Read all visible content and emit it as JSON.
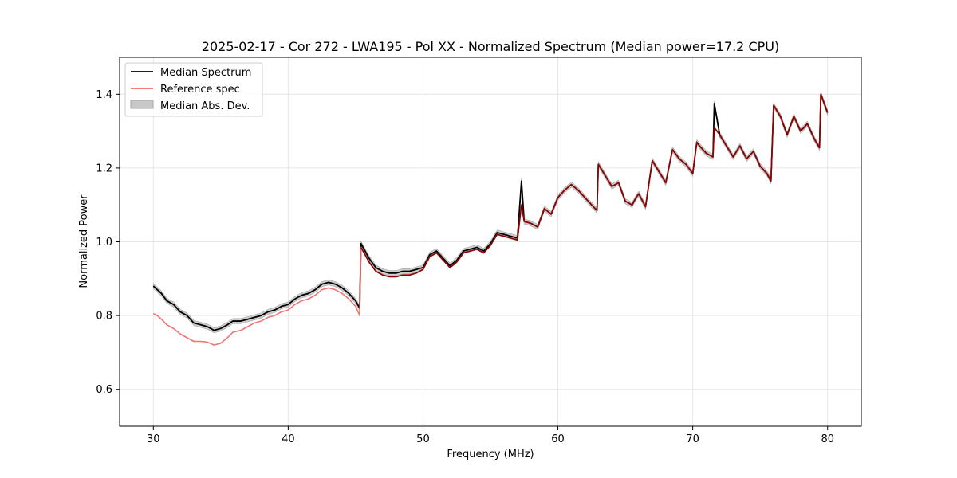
{
  "chart_data": {
    "type": "line",
    "title": "2025-02-17 - Cor 272 - LWA195 - Pol XX - Normalized Spectrum (Median power=17.2 CPU)",
    "xlabel": "Frequency (MHz)",
    "ylabel": "Normalized Power",
    "xlim": [
      27.5,
      82.5
    ],
    "ylim": [
      0.5,
      1.5
    ],
    "xticks": [
      30,
      40,
      50,
      60,
      70,
      80
    ],
    "yticks": [
      0.6,
      0.8,
      1.0,
      1.2,
      1.4
    ],
    "xtick_labels": [
      "30",
      "40",
      "50",
      "60",
      "70",
      "80"
    ],
    "ytick_labels": [
      "0.6",
      "0.8",
      "1.0",
      "1.2",
      "1.4"
    ],
    "grid": true,
    "legend_position": "top-left",
    "legend": [
      {
        "label": "Median Spectrum",
        "kind": "line",
        "color": "#000000"
      },
      {
        "label": "Reference spec",
        "kind": "line",
        "color": "#f26a6a"
      },
      {
        "label": "Median Abs. Dev.",
        "kind": "patch",
        "color": "#c8c8c8"
      }
    ],
    "series": [
      {
        "name": "Median Spectrum",
        "color": "#000000",
        "x": [
          30.0,
          30.3,
          30.6,
          31.0,
          31.5,
          32.0,
          32.5,
          33.0,
          33.5,
          34.0,
          34.5,
          35.0,
          35.5,
          35.9,
          36.5,
          37.0,
          37.5,
          38.0,
          38.5,
          39.0,
          39.5,
          40.0,
          40.5,
          41.0,
          41.5,
          42.0,
          42.5,
          43.0,
          43.5,
          44.0,
          44.5,
          45.0,
          45.3,
          45.4,
          46.0,
          46.5,
          47.0,
          47.5,
          48.0,
          48.5,
          49.0,
          49.5,
          50.0,
          50.5,
          51.0,
          51.5,
          52.0,
          52.5,
          53.0,
          53.5,
          54.0,
          54.5,
          55.0,
          55.5,
          56.0,
          56.5,
          57.0,
          57.3,
          57.5,
          58.0,
          58.5,
          59.0,
          59.5,
          60.0,
          60.5,
          61.0,
          61.5,
          62.0,
          62.5,
          62.9,
          63.0,
          63.5,
          64.0,
          64.5,
          65.0,
          65.5,
          65.8,
          66.0,
          66.5,
          67.0,
          67.5,
          68.0,
          68.5,
          69.0,
          69.5,
          70.0,
          70.3,
          70.5,
          71.0,
          71.5,
          71.6,
          72.0,
          72.5,
          73.0,
          73.5,
          74.0,
          74.5,
          75.0,
          75.5,
          75.8,
          76.0,
          76.5,
          77.0,
          77.5,
          78.0,
          78.5,
          79.0,
          79.4,
          79.5,
          80.0
        ],
        "values": [
          0.88,
          0.87,
          0.86,
          0.84,
          0.83,
          0.81,
          0.8,
          0.78,
          0.775,
          0.77,
          0.76,
          0.765,
          0.775,
          0.785,
          0.785,
          0.79,
          0.795,
          0.8,
          0.81,
          0.815,
          0.825,
          0.83,
          0.845,
          0.855,
          0.86,
          0.87,
          0.885,
          0.89,
          0.885,
          0.875,
          0.86,
          0.84,
          0.82,
          0.995,
          0.955,
          0.93,
          0.92,
          0.915,
          0.915,
          0.92,
          0.92,
          0.925,
          0.93,
          0.965,
          0.975,
          0.955,
          0.935,
          0.95,
          0.975,
          0.98,
          0.985,
          0.975,
          0.995,
          1.025,
          1.02,
          1.015,
          1.01,
          1.165,
          1.055,
          1.05,
          1.04,
          1.09,
          1.075,
          1.12,
          1.14,
          1.155,
          1.14,
          1.12,
          1.1,
          1.085,
          1.21,
          1.18,
          1.15,
          1.16,
          1.11,
          1.1,
          1.12,
          1.13,
          1.095,
          1.22,
          1.19,
          1.16,
          1.25,
          1.225,
          1.21,
          1.185,
          1.27,
          1.26,
          1.24,
          1.23,
          1.375,
          1.29,
          1.26,
          1.23,
          1.26,
          1.225,
          1.245,
          1.205,
          1.185,
          1.165,
          1.37,
          1.34,
          1.29,
          1.34,
          1.3,
          1.32,
          1.28,
          1.255,
          1.4,
          1.35
        ]
      },
      {
        "name": "Reference spec",
        "color": "#f26a6a",
        "x": [
          30.0,
          30.3,
          30.6,
          31.0,
          31.5,
          32.0,
          32.5,
          33.0,
          33.5,
          34.0,
          34.5,
          35.0,
          35.5,
          35.9,
          36.5,
          37.0,
          37.5,
          38.0,
          38.5,
          39.0,
          39.5,
          40.0,
          40.5,
          41.0,
          41.5,
          42.0,
          42.5,
          43.0,
          43.5,
          44.0,
          44.5,
          45.0,
          45.3,
          45.4,
          46.0,
          46.5,
          47.0,
          47.5,
          48.0,
          48.5,
          49.0,
          49.5,
          50.0,
          50.5,
          51.0,
          51.5,
          52.0,
          52.5,
          53.0,
          53.5,
          54.0,
          54.5,
          55.0,
          55.5,
          56.0,
          56.5,
          57.0,
          57.3,
          57.5,
          58.0,
          58.5,
          59.0,
          59.5,
          60.0,
          60.5,
          61.0,
          61.5,
          62.0,
          62.5,
          62.9,
          63.0,
          63.5,
          64.0,
          64.5,
          65.0,
          65.5,
          65.8,
          66.0,
          66.5,
          67.0,
          67.5,
          68.0,
          68.5,
          69.0,
          69.5,
          70.0,
          70.3,
          70.5,
          71.0,
          71.5,
          71.6,
          72.0,
          72.5,
          73.0,
          73.5,
          74.0,
          74.5,
          75.0,
          75.5,
          75.8,
          76.0,
          76.5,
          77.0,
          77.5,
          78.0,
          78.5,
          79.0,
          79.4,
          79.5,
          80.0
        ],
        "values": [
          0.805,
          0.8,
          0.79,
          0.775,
          0.765,
          0.75,
          0.74,
          0.73,
          0.73,
          0.728,
          0.72,
          0.725,
          0.74,
          0.755,
          0.76,
          0.77,
          0.78,
          0.785,
          0.795,
          0.8,
          0.81,
          0.815,
          0.83,
          0.84,
          0.845,
          0.855,
          0.87,
          0.875,
          0.87,
          0.86,
          0.845,
          0.825,
          0.8,
          0.985,
          0.945,
          0.92,
          0.91,
          0.905,
          0.905,
          0.91,
          0.91,
          0.915,
          0.925,
          0.96,
          0.97,
          0.95,
          0.93,
          0.945,
          0.97,
          0.975,
          0.98,
          0.97,
          0.99,
          1.02,
          1.015,
          1.01,
          1.005,
          1.1,
          1.055,
          1.05,
          1.04,
          1.09,
          1.075,
          1.12,
          1.14,
          1.155,
          1.14,
          1.12,
          1.1,
          1.085,
          1.21,
          1.18,
          1.15,
          1.16,
          1.11,
          1.1,
          1.12,
          1.13,
          1.095,
          1.22,
          1.19,
          1.16,
          1.25,
          1.225,
          1.21,
          1.185,
          1.27,
          1.26,
          1.24,
          1.23,
          1.31,
          1.29,
          1.26,
          1.23,
          1.26,
          1.225,
          1.245,
          1.205,
          1.185,
          1.165,
          1.37,
          1.34,
          1.29,
          1.34,
          1.3,
          1.32,
          1.28,
          1.255,
          1.4,
          1.35
        ]
      },
      {
        "name": "Median Abs. Dev.",
        "color": "#c8c8c8",
        "band_halfwidth": 0.007
      }
    ]
  }
}
